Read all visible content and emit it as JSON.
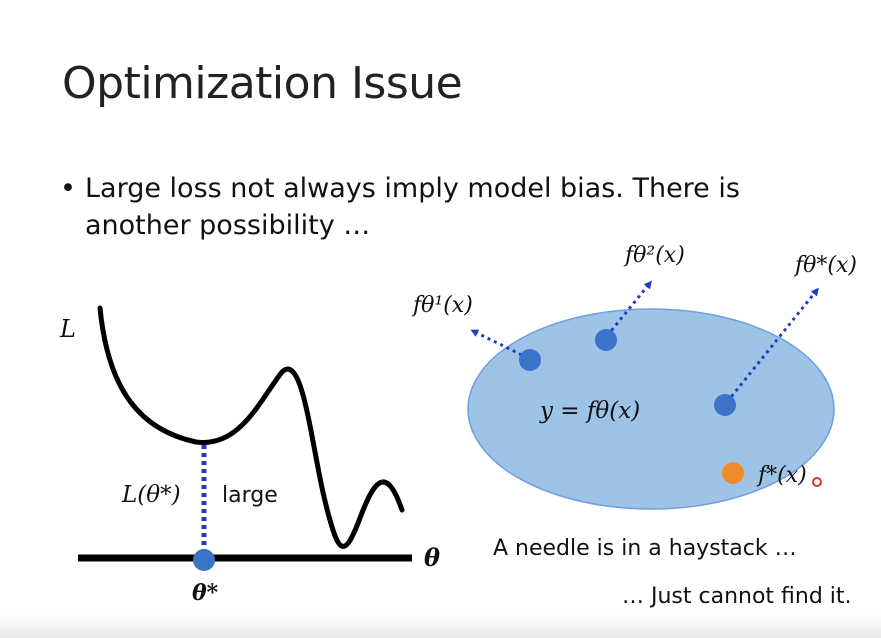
{
  "slide": {
    "title": "Optimization Issue",
    "bullet_symbol": "•",
    "bullet_text": "Large loss not always imply model bias. There is another possibility …"
  },
  "left_plot": {
    "y_axis_label": "L",
    "x_axis_label": "θ",
    "min_point_label": "θ*",
    "loss_label": "L(θ*)",
    "loss_note": "large",
    "colors": {
      "curve": "#000000",
      "point": "#3a73c8",
      "dotted": "#1f3fbf"
    }
  },
  "right_diagram": {
    "ellipse_label": "y = fθ(x)",
    "labels": {
      "f1": "fθ¹(x)",
      "f2": "fθ²(x)",
      "fstar_theta": "fθ*(x)",
      "fstar": "f*(x)"
    },
    "caption_1": "A needle is in a haystack …",
    "caption_2": "… Just cannot find it.",
    "colors": {
      "ellipse_fill": "#9dc3e6",
      "ellipse_stroke": "#5b8fd6",
      "points": "#3a73c8",
      "target": "#f08a2a",
      "arrows": "#1f3fbf"
    }
  }
}
